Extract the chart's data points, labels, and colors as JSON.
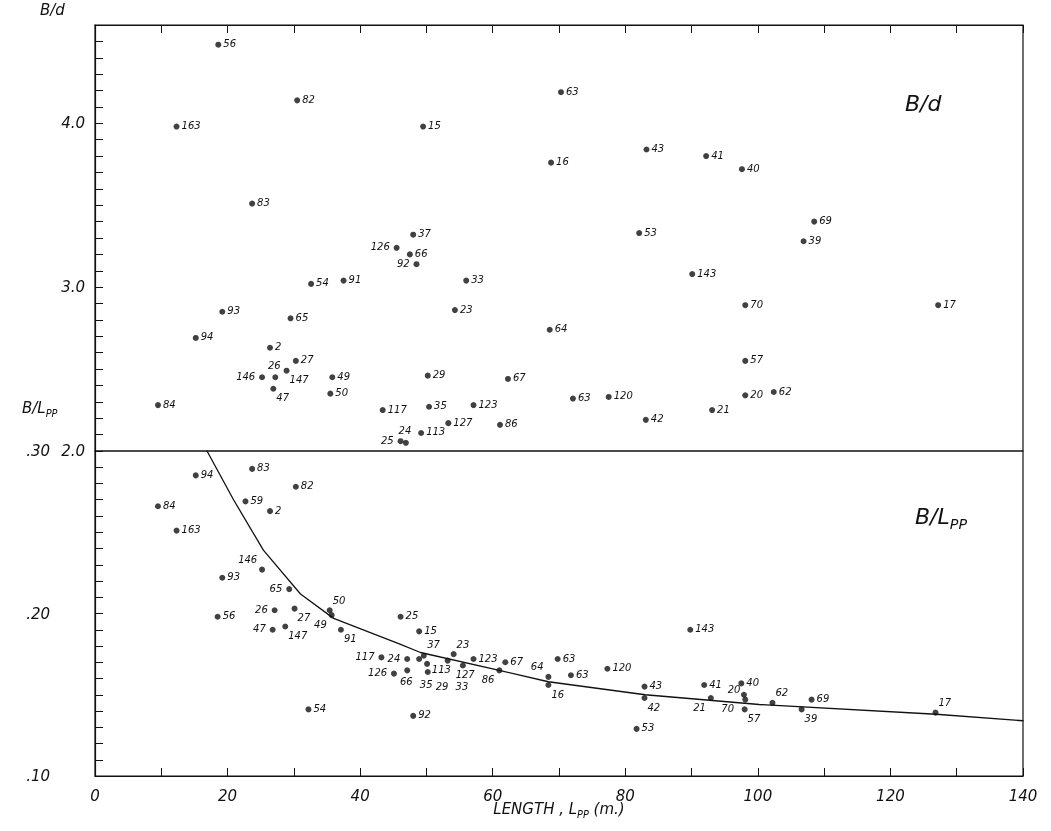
{
  "chart_data": [
    {
      "type": "scatter",
      "ylabel": "B/d",
      "color": "#111111",
      "marker": "circle",
      "tick_labels": "y",
      "xlim": [
        0,
        140
      ],
      "xticks": [
        0,
        {
          "value": 10,
          "label": null
        },
        20,
        {
          "value": 30,
          "label": null
        },
        40,
        {
          "value": 50,
          "label": null
        },
        60,
        {
          "value": 70,
          "label": null
        },
        80,
        {
          "value": 90,
          "label": null
        },
        100,
        {
          "value": 110,
          "label": null
        },
        120,
        {
          "value": 130,
          "label": null
        },
        140
      ],
      "ylim": [
        2,
        4.6
      ],
      "yticks": [
        {
          "value": 2,
          "label": "2.0"
        },
        {
          "value": 2.1,
          "label": null
        },
        {
          "value": 2.2,
          "label": null
        },
        {
          "value": 2.3,
          "label": null
        },
        {
          "value": 2.4,
          "label": null
        },
        {
          "value": 2.5,
          "label": null
        },
        {
          "value": 2.6,
          "label": null
        },
        {
          "value": 2.7,
          "label": null
        },
        {
          "value": 2.8,
          "label": null
        },
        {
          "value": 2.9,
          "label": null
        },
        {
          "value": 3,
          "label": "3.0"
        },
        {
          "value": 3.1,
          "label": null
        },
        {
          "value": 3.2,
          "label": null
        },
        {
          "value": 3.3,
          "label": null
        },
        {
          "value": 3.4,
          "label": null
        },
        {
          "value": 3.5,
          "label": null
        },
        {
          "value": 3.6,
          "label": null
        },
        {
          "value": 3.7,
          "label": null
        },
        {
          "value": 3.8,
          "label": null
        },
        {
          "value": 3.9,
          "label": null
        },
        {
          "value": 4,
          "label": "4.0"
        },
        {
          "value": 4.1,
          "label": null
        },
        {
          "value": 4.2,
          "label": null
        },
        {
          "value": 4.3,
          "label": null
        },
        {
          "value": 4.4,
          "label": null
        },
        {
          "value": 4.5,
          "label": null
        }
      ],
      "x": [
        18.6,
        30.5,
        12.3,
        49.5,
        23.7,
        48.0,
        45.5,
        47.5,
        48.5,
        56.0,
        32.6,
        37.5,
        54.3,
        19.2,
        29.5,
        15.2,
        26.4,
        30.3,
        28.9,
        25.2,
        27.2,
        26.9,
        35.8,
        35.5,
        50.2,
        9.5,
        43.4,
        50.4,
        57.1,
        53.3,
        49.2,
        46.1,
        46.9,
        61.1,
        62.3,
        70.3,
        68.8,
        83.2,
        92.2,
        97.6,
        108.5,
        106.9,
        82.1,
        90.1,
        98.1,
        127.2,
        68.6,
        98.1,
        72.1,
        77.5,
        98.1,
        102.4,
        93.1,
        83.1
      ],
      "values": [
        4.48,
        4.14,
        3.98,
        3.98,
        3.51,
        3.32,
        3.24,
        3.2,
        3.14,
        3.04,
        3.02,
        3.04,
        2.86,
        2.85,
        2.81,
        2.69,
        2.63,
        2.55,
        2.49,
        2.45,
        2.45,
        2.38,
        2.45,
        2.35,
        2.46,
        2.28,
        2.25,
        2.27,
        2.28,
        2.17,
        2.11,
        2.06,
        2.05,
        2.16,
        2.44,
        4.19,
        3.76,
        3.84,
        3.8,
        3.72,
        3.4,
        3.28,
        3.33,
        3.08,
        2.89,
        2.89,
        2.74,
        2.55,
        2.32,
        2.33,
        2.34,
        2.36,
        2.25,
        2.19
      ],
      "annotations": [
        "B/d",
        {
          "text": "56",
          "x": 18.6,
          "y": 4.48
        },
        {
          "text": "82",
          "x": 30.5,
          "y": 4.14
        },
        {
          "text": "163",
          "x": 12.3,
          "y": 3.98
        },
        {
          "text": "15",
          "x": 49.5,
          "y": 3.98
        },
        {
          "text": "83",
          "x": 23.7,
          "y": 3.51
        },
        {
          "text": "37",
          "x": 48.0,
          "y": 3.32
        },
        {
          "text": "126",
          "x": 45.5,
          "y": 3.24
        },
        {
          "text": "66",
          "x": 47.5,
          "y": 3.2
        },
        {
          "text": "92",
          "x": 48.5,
          "y": 3.14
        },
        {
          "text": "33",
          "x": 56.0,
          "y": 3.04
        },
        {
          "text": "54",
          "x": 32.6,
          "y": 3.02
        },
        {
          "text": "91",
          "x": 37.5,
          "y": 3.04
        },
        {
          "text": "23",
          "x": 54.3,
          "y": 2.86
        },
        {
          "text": "93",
          "x": 19.2,
          "y": 2.85
        },
        {
          "text": "65",
          "x": 29.5,
          "y": 2.81
        },
        {
          "text": "94",
          "x": 15.2,
          "y": 2.69
        },
        {
          "text": "2",
          "x": 26.4,
          "y": 2.63
        },
        {
          "text": "27",
          "x": 30.3,
          "y": 2.55
        },
        {
          "text": "147",
          "x": 28.9,
          "y": 2.49
        },
        {
          "text": "146",
          "x": 25.2,
          "y": 2.45
        },
        {
          "text": "26",
          "x": 27.2,
          "y": 2.45
        },
        {
          "text": "47",
          "x": 26.9,
          "y": 2.38
        },
        {
          "text": "49",
          "x": 35.8,
          "y": 2.45
        },
        {
          "text": "50",
          "x": 35.5,
          "y": 2.35
        },
        {
          "text": "29",
          "x": 50.2,
          "y": 2.46
        },
        {
          "text": "84",
          "x": 9.5,
          "y": 2.28
        },
        {
          "text": "117",
          "x": 43.4,
          "y": 2.25
        },
        {
          "text": "35",
          "x": 50.4,
          "y": 2.27
        },
        {
          "text": "123",
          "x": 57.1,
          "y": 2.28
        },
        {
          "text": "127",
          "x": 53.3,
          "y": 2.17
        },
        {
          "text": "113",
          "x": 49.2,
          "y": 2.11
        },
        {
          "text": "25",
          "x": 46.1,
          "y": 2.06
        },
        {
          "text": "24",
          "x": 46.9,
          "y": 2.05
        },
        {
          "text": "86",
          "x": 61.1,
          "y": 2.16
        },
        {
          "text": "67",
          "x": 62.3,
          "y": 2.44
        },
        {
          "text": "63",
          "x": 70.3,
          "y": 4.19
        },
        {
          "text": "16",
          "x": 68.8,
          "y": 3.76
        },
        {
          "text": "43",
          "x": 83.2,
          "y": 3.84
        },
        {
          "text": "41",
          "x": 92.2,
          "y": 3.8
        },
        {
          "text": "40",
          "x": 97.6,
          "y": 3.72
        },
        {
          "text": "69",
          "x": 108.5,
          "y": 3.4
        },
        {
          "text": "39",
          "x": 106.9,
          "y": 3.28
        },
        {
          "text": "53",
          "x": 82.1,
          "y": 3.33
        },
        {
          "text": "143",
          "x": 90.1,
          "y": 3.08
        },
        {
          "text": "70",
          "x": 98.1,
          "y": 2.89
        },
        {
          "text": "17",
          "x": 127.2,
          "y": 2.89
        },
        {
          "text": "64",
          "x": 68.6,
          "y": 2.74
        },
        {
          "text": "57",
          "x": 98.1,
          "y": 2.55
        },
        {
          "text": "63",
          "x": 72.1,
          "y": 2.32
        },
        {
          "text": "120",
          "x": 77.5,
          "y": 2.33
        },
        {
          "text": "20",
          "x": 98.1,
          "y": 2.34
        },
        {
          "text": "62",
          "x": 102.4,
          "y": 2.36
        },
        {
          "text": "21",
          "x": 93.1,
          "y": 2.25
        },
        {
          "text": "42",
          "x": 83.1,
          "y": 2.19
        }
      ]
    },
    {
      "type": "scatter",
      "xlabel": "LENGTH ,  L$_{PP}$   (m.)",
      "ylabel": "B/L$_{PP}$",
      "marker": "circle",
      "xlim": [
        0,
        140
      ],
      "xticks": [
        0,
        {
          "value": 10,
          "label": null
        },
        20,
        {
          "value": 30,
          "label": null
        },
        40,
        {
          "value": 50,
          "label": null
        },
        60,
        {
          "value": 70,
          "label": null
        },
        80,
        {
          "value": 90,
          "label": null
        },
        100,
        {
          "value": 110,
          "label": null
        },
        120,
        {
          "value": 130,
          "label": null
        },
        140
      ],
      "ylim": [
        0.1,
        0.3
      ],
      "yticks": [
        {
          "value": 0.1,
          "label": ".10"
        },
        {
          "value": 0.11,
          "label": null
        },
        {
          "value": 0.12,
          "label": null
        },
        {
          "value": 0.13,
          "label": null
        },
        {
          "value": 0.14,
          "label": null
        },
        {
          "value": 0.15,
          "label": null
        },
        {
          "value": 0.16,
          "label": null
        },
        {
          "value": 0.17,
          "label": null
        },
        {
          "value": 0.18,
          "label": null
        },
        {
          "value": 0.19,
          "label": null
        },
        {
          "value": 0.2,
          "label": ".20"
        },
        {
          "value": 0.21,
          "label": null
        },
        {
          "value": 0.22,
          "label": null
        },
        {
          "value": 0.23,
          "label": null
        },
        {
          "value": 0.24,
          "label": null
        },
        {
          "value": 0.25,
          "label": null
        },
        {
          "value": 0.26,
          "label": null
        },
        {
          "value": 0.27,
          "label": null
        },
        {
          "value": 0.28,
          "label": null
        },
        {
          "value": 0.29,
          "label": null
        },
        {
          "value": 0.3,
          "label": ".30"
        }
      ],
      "series": [
        {
          "type": "scatter",
          "color": "#111111",
          "x": [
            15.2,
            23.7,
            30.3,
            9.5,
            22.7,
            26.4,
            12.3,
            19.2,
            25.2,
            29.3,
            27.1,
            30.1,
            35.4,
            35.7,
            18.5,
            28.7,
            26.8,
            37.1,
            32.2,
            46.1,
            48.9,
            43.2,
            47.1,
            45.1,
            47.1,
            48.9,
            49.6,
            50.1,
            50.2,
            54.1,
            53.2,
            55.5,
            57.1,
            61.0,
            61.9,
            68.4,
            68.4,
            69.8,
            71.8,
            77.3,
            48.0,
            82.9,
            82.9,
            81.7,
            89.8,
            91.9,
            92.9,
            97.5,
            97.9,
            98.0,
            98.1,
            102.2,
            108.1,
            106.6,
            126.8
          ],
          "values": [
            0.285,
            0.289,
            0.278,
            0.266,
            0.269,
            0.263,
            0.251,
            0.222,
            0.227,
            0.215,
            0.202,
            0.203,
            0.202,
            0.199,
            0.198,
            0.192,
            0.19,
            0.19,
            0.141,
            0.198,
            0.189,
            0.173,
            0.172,
            0.163,
            0.165,
            0.172,
            0.174,
            0.169,
            0.164,
            0.175,
            0.171,
            0.168,
            0.172,
            0.165,
            0.17,
            0.161,
            0.156,
            0.172,
            0.162,
            0.166,
            0.137,
            0.155,
            0.148,
            0.129,
            0.19,
            0.156,
            0.148,
            0.157,
            0.15,
            0.141,
            0.147,
            0.145,
            0.147,
            0.141,
            0.139
          ]
        },
        {
          "type": "line",
          "color": "#111111",
          "marker": "none",
          "x": [
            16.9,
            20.9,
            25.4,
            31.0,
            36.0,
            46.1,
            49.1,
            61.0,
            68.4,
            83.0,
            100.2,
            126.9,
            140
          ],
          "values": [
            0.3,
            0.27,
            0.239,
            0.212,
            0.197,
            0.181,
            0.176,
            0.165,
            0.158,
            0.15,
            0.144,
            0.138,
            0.134
          ]
        }
      ],
      "annotations": [
        "B/L$_{PP}$",
        {
          "text": "94",
          "x": 15.2,
          "y": 0.285
        },
        {
          "text": "83",
          "x": 23.7,
          "y": 0.289
        },
        {
          "text": "82",
          "x": 30.3,
          "y": 0.278
        },
        {
          "text": "84",
          "x": 9.5,
          "y": 0.266
        },
        {
          "text": "59",
          "x": 22.7,
          "y": 0.269
        },
        {
          "text": "2",
          "x": 26.4,
          "y": 0.263
        },
        {
          "text": "163",
          "x": 12.3,
          "y": 0.251
        },
        {
          "text": "93",
          "x": 19.2,
          "y": 0.222
        },
        {
          "text": "146",
          "x": 25.2,
          "y": 0.227
        },
        {
          "text": "65",
          "x": 29.3,
          "y": 0.215
        },
        {
          "text": "26",
          "x": 27.1,
          "y": 0.202
        },
        {
          "text": "27",
          "x": 30.1,
          "y": 0.203
        },
        {
          "text": "50",
          "x": 35.4,
          "y": 0.202
        },
        {
          "text": "49",
          "x": 35.7,
          "y": 0.199
        },
        {
          "text": "56",
          "x": 18.5,
          "y": 0.198
        },
        {
          "text": "147",
          "x": 28.7,
          "y": 0.192
        },
        {
          "text": "47",
          "x": 26.8,
          "y": 0.19
        },
        {
          "text": "91",
          "x": 37.1,
          "y": 0.19
        },
        {
          "text": "54",
          "x": 32.2,
          "y": 0.141
        },
        {
          "text": "25",
          "x": 46.1,
          "y": 0.198
        },
        {
          "text": "15",
          "x": 48.9,
          "y": 0.189
        },
        {
          "text": "117",
          "x": 43.2,
          "y": 0.173
        },
        {
          "text": "24",
          "x": 47.1,
          "y": 0.172
        },
        {
          "text": "126",
          "x": 45.1,
          "y": 0.163
        },
        {
          "text": "66",
          "x": 47.1,
          "y": 0.165
        },
        {
          "text": "37",
          "x": 48.9,
          "y": 0.172
        },
        {
          "text": "113",
          "x": 49.6,
          "y": 0.174
        },
        {
          "text": "35",
          "x": 50.1,
          "y": 0.169
        },
        {
          "text": "29",
          "x": 50.2,
          "y": 0.164
        },
        {
          "text": "23",
          "x": 54.1,
          "y": 0.175
        },
        {
          "text": "127",
          "x": 53.2,
          "y": 0.171
        },
        {
          "text": "33",
          "x": 55.5,
          "y": 0.168
        },
        {
          "text": "123",
          "x": 57.1,
          "y": 0.172
        },
        {
          "text": "86",
          "x": 61.0,
          "y": 0.165
        },
        {
          "text": "67",
          "x": 61.9,
          "y": 0.17
        },
        {
          "text": "64",
          "x": 68.4,
          "y": 0.161
        },
        {
          "text": "16",
          "x": 68.4,
          "y": 0.156
        },
        {
          "text": "63",
          "x": 69.8,
          "y": 0.172
        },
        {
          "text": "63",
          "x": 71.8,
          "y": 0.162
        },
        {
          "text": "120",
          "x": 77.3,
          "y": 0.166
        },
        {
          "text": "92",
          "x": 48.0,
          "y": 0.137
        },
        {
          "text": "43",
          "x": 82.9,
          "y": 0.155
        },
        {
          "text": "42",
          "x": 82.9,
          "y": 0.148
        },
        {
          "text": "53",
          "x": 81.7,
          "y": 0.129
        },
        {
          "text": "143",
          "x": 89.8,
          "y": 0.19
        },
        {
          "text": "41",
          "x": 91.9,
          "y": 0.156
        },
        {
          "text": "21",
          "x": 92.9,
          "y": 0.148
        },
        {
          "text": "40",
          "x": 97.5,
          "y": 0.157
        },
        {
          "text": "70",
          "x": 97.9,
          "y": 0.15
        },
        {
          "text": "57",
          "x": 98.0,
          "y": 0.141
        },
        {
          "text": "20",
          "x": 98.1,
          "y": 0.147
        },
        {
          "text": "62",
          "x": 102.2,
          "y": 0.145
        },
        {
          "text": "69",
          "x": 108.1,
          "y": 0.147
        },
        {
          "text": "39",
          "x": 106.6,
          "y": 0.141
        },
        {
          "text": "17",
          "x": 126.8,
          "y": 0.139
        }
      ]
    }
  ]
}
